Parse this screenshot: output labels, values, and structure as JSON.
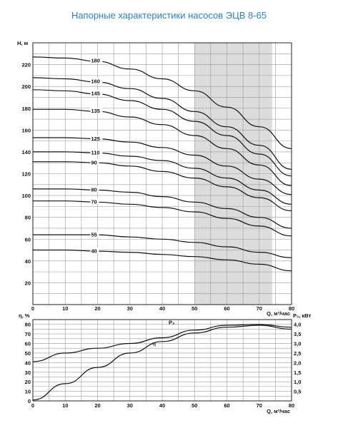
{
  "title": "Напорные характеристики насосов ЭЦВ 8-65",
  "chart_data": [
    {
      "type": "line",
      "title": "",
      "xlabel": "Q, м³/час",
      "ylabel": "H, м",
      "xlim": [
        0,
        80
      ],
      "ylim": [
        0,
        240
      ],
      "x_ticks": [
        "0",
        "10",
        "20",
        "30",
        "40",
        "50",
        "60",
        "70",
        "80"
      ],
      "y_ticks": [
        "20",
        "40",
        "60",
        "80",
        "100",
        "120",
        "140",
        "160",
        "180",
        "200",
        "220"
      ],
      "grid": true,
      "shaded_range": [
        50,
        74
      ],
      "series": [
        {
          "name": "180",
          "label_x": 18,
          "points": [
            [
              0,
              227
            ],
            [
              10,
              226
            ],
            [
              20,
              223
            ],
            [
              30,
              216
            ],
            [
              40,
              207
            ],
            [
              50,
              196
            ],
            [
              60,
              181
            ],
            [
              70,
              163
            ],
            [
              80,
              143
            ]
          ]
        },
        {
          "name": "160",
          "label_x": 18,
          "points": [
            [
              0,
              208
            ],
            [
              10,
              207
            ],
            [
              20,
              204
            ],
            [
              30,
              198
            ],
            [
              40,
              189
            ],
            [
              50,
              177
            ],
            [
              60,
              163
            ],
            [
              70,
              146
            ],
            [
              80,
              124
            ]
          ]
        },
        {
          "name": "145",
          "label_x": 18,
          "points": [
            [
              0,
              197
            ],
            [
              10,
              196
            ],
            [
              20,
              193
            ],
            [
              30,
              187
            ],
            [
              40,
              179
            ],
            [
              50,
              168
            ],
            [
              60,
              155
            ],
            [
              70,
              138
            ],
            [
              80,
              118
            ]
          ]
        },
        {
          "name": "135",
          "label_x": 18,
          "points": [
            [
              0,
              179
            ],
            [
              10,
              179
            ],
            [
              20,
              177
            ],
            [
              30,
              172
            ],
            [
              40,
              165
            ],
            [
              50,
              155
            ],
            [
              60,
              143
            ],
            [
              70,
              128
            ],
            [
              80,
              109
            ]
          ]
        },
        {
          "name": "125",
          "label_x": 18,
          "points": [
            [
              0,
              153
            ],
            [
              10,
              153
            ],
            [
              20,
              152
            ],
            [
              30,
              149
            ],
            [
              40,
              144
            ],
            [
              50,
              137
            ],
            [
              60,
              127
            ],
            [
              70,
              115
            ],
            [
              80,
              101
            ]
          ]
        },
        {
          "name": "110",
          "label_x": 18,
          "points": [
            [
              0,
              140
            ],
            [
              10,
              140
            ],
            [
              20,
              139
            ],
            [
              30,
              136
            ],
            [
              40,
              132
            ],
            [
              50,
              125
            ],
            [
              60,
              116
            ],
            [
              70,
              105
            ],
            [
              80,
              92
            ]
          ]
        },
        {
          "name": "90",
          "label_x": 18,
          "points": [
            [
              0,
              131
            ],
            [
              10,
              131
            ],
            [
              20,
              130
            ],
            [
              30,
              127
            ],
            [
              40,
              122
            ],
            [
              50,
              116
            ],
            [
              60,
              108
            ],
            [
              70,
              98
            ],
            [
              80,
              86
            ]
          ]
        },
        {
          "name": "80",
          "label_x": 18,
          "points": [
            [
              0,
              106
            ],
            [
              10,
              106
            ],
            [
              20,
              105
            ],
            [
              30,
              103
            ],
            [
              40,
              99
            ],
            [
              50,
              94
            ],
            [
              60,
              88
            ],
            [
              70,
              80
            ],
            [
              80,
              70
            ]
          ]
        },
        {
          "name": "70",
          "label_x": 18,
          "points": [
            [
              0,
              95
            ],
            [
              10,
              95
            ],
            [
              20,
              94
            ],
            [
              30,
              92
            ],
            [
              40,
              89
            ],
            [
              50,
              85
            ],
            [
              60,
              79
            ],
            [
              70,
              72
            ],
            [
              80,
              63
            ]
          ]
        },
        {
          "name": "55",
          "label_x": 18,
          "points": [
            [
              0,
              64
            ],
            [
              10,
              64
            ],
            [
              20,
              64
            ],
            [
              30,
              62
            ],
            [
              40,
              60
            ],
            [
              50,
              57
            ],
            [
              60,
              53
            ],
            [
              70,
              48
            ],
            [
              80,
              43
            ]
          ]
        },
        {
          "name": "40",
          "label_x": 18,
          "points": [
            [
              0,
              50
            ],
            [
              10,
              50
            ],
            [
              20,
              49
            ],
            [
              30,
              48
            ],
            [
              40,
              46
            ],
            [
              50,
              44
            ],
            [
              60,
              41
            ],
            [
              70,
              37
            ],
            [
              80,
              31
            ]
          ]
        }
      ]
    },
    {
      "type": "line",
      "title": "",
      "xlabel": "Q, м³/час",
      "ylabel": "η, %",
      "ylabel_right": "P₂, кВт",
      "xlim": [
        0,
        80
      ],
      "ylim": [
        0,
        85
      ],
      "x_ticks": [
        "0",
        "10",
        "20",
        "30",
        "40",
        "50",
        "60",
        "70",
        "80"
      ],
      "y_ticks": [
        "0",
        "10",
        "20",
        "30",
        "40",
        "50",
        "60",
        "70",
        "80"
      ],
      "y_ticks_right": [
        "0,5",
        "1,0",
        "1,5",
        "2,0",
        "2,5",
        "3,0",
        "3,5",
        "4,0"
      ],
      "ylim_right": [
        0,
        4.25
      ],
      "grid": true,
      "series": [
        {
          "name": "P₂",
          "label_x": 42,
          "label_y": 80,
          "points": [
            [
              0,
              2.05
            ],
            [
              10,
              2.5
            ],
            [
              20,
              2.75
            ],
            [
              30,
              3.0
            ],
            [
              40,
              3.3
            ],
            [
              50,
              3.7
            ],
            [
              60,
              3.95
            ],
            [
              70,
              4.0
            ],
            [
              80,
              3.85
            ]
          ]
        },
        {
          "name": "η",
          "label_x": 37,
          "label_y": 58,
          "points": [
            [
              0,
              1
            ],
            [
              10,
              18
            ],
            [
              20,
              35
            ],
            [
              30,
              50
            ],
            [
              40,
              62
            ],
            [
              50,
              71
            ],
            [
              60,
              77
            ],
            [
              70,
              79
            ],
            [
              80,
              75
            ]
          ]
        }
      ]
    }
  ]
}
